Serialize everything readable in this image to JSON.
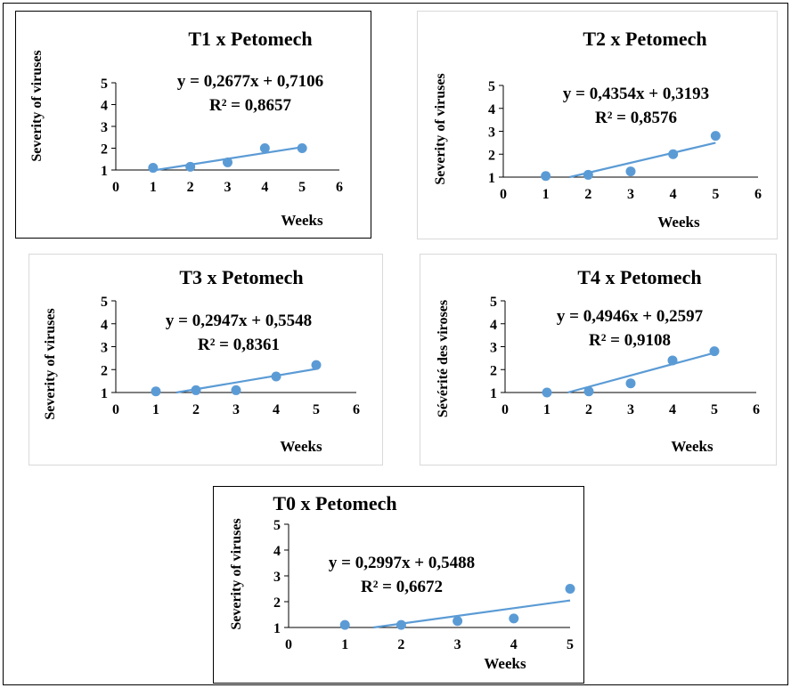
{
  "chart_data": [
    {
      "type": "scatter",
      "title": "T1 x Petomech",
      "xlabel": "Weeks",
      "ylabel": "Severity of viruses",
      "xlim": [
        0,
        6
      ],
      "ylim": [
        1,
        5
      ],
      "xticks": [
        "0",
        "1",
        "2",
        "3",
        "4",
        "5",
        "6"
      ],
      "yticks": [
        "1",
        "2",
        "3",
        "4",
        "5"
      ],
      "x": [
        1,
        2,
        3,
        4,
        5
      ],
      "y": [
        1.1,
        1.15,
        1.35,
        2.0,
        2.0
      ],
      "trendline": {
        "slope": 0.2677,
        "intercept": 0.7106
      },
      "equation": "y = 0,2677x + 0,7106",
      "r2": "R² = 0,8657",
      "grid": false,
      "color": "#5b9bd5"
    },
    {
      "type": "scatter",
      "title": "T2 x Petomech",
      "xlabel": "Weeks",
      "ylabel": "Severity of viruses",
      "xlim": [
        0,
        6
      ],
      "ylim": [
        1,
        5
      ],
      "xticks": [
        "0",
        "1",
        "2",
        "3",
        "4",
        "5",
        "6"
      ],
      "yticks": [
        "1",
        "2",
        "3",
        "4",
        "5"
      ],
      "x": [
        1,
        2,
        3,
        4,
        5
      ],
      "y": [
        1.05,
        1.1,
        1.25,
        2.0,
        2.8
      ],
      "trendline": {
        "slope": 0.4354,
        "intercept": 0.3193
      },
      "equation": "y = 0,4354x + 0,3193",
      "r2": "R² = 0,8576",
      "grid": false,
      "color": "#5b9bd5"
    },
    {
      "type": "scatter",
      "title": "T3 x Petomech",
      "xlabel": "Weeks",
      "ylabel": "Severity of viruses",
      "xlim": [
        0,
        6
      ],
      "ylim": [
        1,
        5
      ],
      "xticks": [
        "0",
        "1",
        "2",
        "3",
        "4",
        "5",
        "6"
      ],
      "yticks": [
        "1",
        "2",
        "3",
        "4",
        "5"
      ],
      "x": [
        1,
        2,
        3,
        4,
        5
      ],
      "y": [
        1.05,
        1.1,
        1.1,
        1.7,
        2.2
      ],
      "trendline": {
        "slope": 0.2947,
        "intercept": 0.5548
      },
      "equation": "y = 0,2947x + 0,5548",
      "r2": "R² = 0,8361",
      "grid": false,
      "color": "#5b9bd5"
    },
    {
      "type": "scatter",
      "title": "T4 x Petomech",
      "xlabel": "Weeks",
      "ylabel": "Sévérité des viroses",
      "xlim": [
        0,
        6
      ],
      "ylim": [
        1,
        5
      ],
      "xticks": [
        "0",
        "1",
        "2",
        "3",
        "4",
        "5",
        "6"
      ],
      "yticks": [
        "1",
        "2",
        "3",
        "4",
        "5"
      ],
      "x": [
        1,
        2,
        3,
        4,
        5
      ],
      "y": [
        1.0,
        1.05,
        1.4,
        2.4,
        2.8
      ],
      "trendline": {
        "slope": 0.4946,
        "intercept": 0.2597
      },
      "equation": "y = 0,4946x + 0,2597",
      "r2": "R² = 0,9108",
      "grid": false,
      "color": "#5b9bd5"
    },
    {
      "type": "scatter",
      "title": "T0 x Petomech",
      "xlabel": "Weeks",
      "ylabel": "Severity of viruses",
      "xlim": [
        0,
        5
      ],
      "ylim": [
        1,
        5
      ],
      "xticks": [
        "0",
        "1",
        "2",
        "3",
        "4",
        "5"
      ],
      "yticks": [
        "1",
        "2",
        "3",
        "4",
        "5"
      ],
      "x": [
        1,
        2,
        3,
        4,
        5
      ],
      "y": [
        1.1,
        1.1,
        1.25,
        1.35,
        2.5
      ],
      "trendline": {
        "slope": 0.2997,
        "intercept": 0.5488
      },
      "equation": "y = 0,2997x + 0,5488",
      "r2": "R² = 0,6672",
      "grid": false,
      "color": "#5b9bd5"
    }
  ]
}
